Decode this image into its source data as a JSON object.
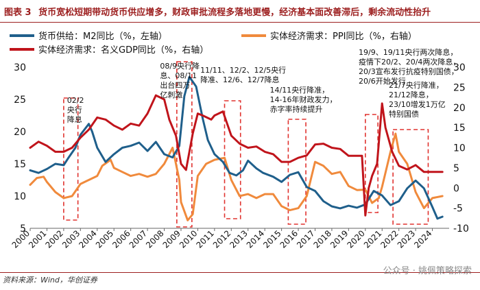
{
  "header": {
    "label": "图表 3",
    "title": "货币宽松短期带动货币供应增多，财政审批流程多落地更慢，经济基本面改善滞后，剩余流动性抬升"
  },
  "source": "资料来源：Wind，华创证券",
  "watermark": "公众号 · 姚佩策略探索",
  "colors": {
    "m2": "#1f5f8b",
    "ppi": "#f08a3c",
    "gdp": "#c0141b",
    "box": "#e0322e",
    "accent": "#9c1e1e"
  },
  "chart_data": {
    "type": "line",
    "legend": [
      "货币供给：M2同比（%，左轴）",
      "实体经济需求：PPI同比（%，右轴）",
      "实体经济需求：名义GDP同比（%，右轴）"
    ],
    "x_ticks": [
      "2000",
      "2001",
      "2002",
      "2003",
      "2004",
      "2005",
      "2006",
      "2007",
      "2008",
      "2009",
      "2010",
      "2011",
      "2012",
      "2013",
      "2014",
      "2015",
      "2016",
      "2017",
      "2018",
      "2019",
      "2020",
      "2021",
      "2022",
      "2023",
      "2024"
    ],
    "left_axis": {
      "min": 5,
      "max": 30,
      "ticks": [
        5,
        10,
        15,
        20,
        25,
        30
      ]
    },
    "right_axis": {
      "min": -10,
      "max": 30,
      "ticks": [
        -10,
        -5,
        0,
        5,
        10,
        15,
        20,
        25,
        30
      ]
    },
    "series": [
      {
        "name": "货币供给：M2同比（%，左轴）",
        "axis": "left",
        "x": [
          2000,
          2000.5,
          2001,
          2001.5,
          2002,
          2002.3,
          2002.7,
          2003,
          2003.5,
          2003.7,
          2004,
          2004.5,
          2005,
          2005.5,
          2006,
          2006.5,
          2007,
          2007.5,
          2008,
          2008.5,
          2008.9,
          2009.2,
          2009.5,
          2009.9,
          2010.3,
          2010.6,
          2011,
          2011.5,
          2011.9,
          2012.3,
          2012.7,
          2013,
          2013.5,
          2013.9,
          2014.5,
          2015,
          2015.5,
          2016,
          2016.5,
          2017,
          2017.5,
          2018,
          2018.5,
          2019,
          2019.5,
          2020,
          2020.5,
          2021,
          2021.5,
          2022,
          2022.5,
          2023,
          2023.5,
          2024,
          2024.3,
          2024.6
        ],
        "y": [
          14,
          13.6,
          14.2,
          15,
          14.8,
          16,
          17.5,
          19.5,
          21.2,
          20,
          17.5,
          15.3,
          16.5,
          17.5,
          17.8,
          18.3,
          17,
          18.4,
          16.5,
          16,
          17.8,
          25.5,
          28.5,
          27,
          22,
          18.7,
          16.5,
          15.3,
          13.6,
          13.2,
          14,
          15.5,
          14.3,
          13.6,
          13,
          12.2,
          13.3,
          13.7,
          11.4,
          10.8,
          9.2,
          8.4,
          8.1,
          8.5,
          8.2,
          8.7,
          10.8,
          10.1,
          8.6,
          9.2,
          11.2,
          12.4,
          11.2,
          8.3,
          6.5,
          6.8
        ]
      },
      {
        "name": "实体经济需求：PPI同比（%，右轴）",
        "axis": "right",
        "x": [
          2000,
          2000.4,
          2000.8,
          2001,
          2001.5,
          2002,
          2002.5,
          2003,
          2003.5,
          2004,
          2004.3,
          2004.8,
          2005,
          2005.5,
          2006,
          2006.5,
          2007,
          2007.5,
          2008,
          2008.5,
          2008.9,
          2009,
          2009.4,
          2009.7,
          2010,
          2010.5,
          2011,
          2011.6,
          2012,
          2012.5,
          2013,
          2013.5,
          2014,
          2014.5,
          2015,
          2015.5,
          2016,
          2016.5,
          2017,
          2017.5,
          2018,
          2018.5,
          2019,
          2019.5,
          2020,
          2020.4,
          2020.8,
          2021,
          2021.5,
          2021.8,
          2022,
          2022.5,
          2023,
          2023.5,
          2024,
          2024.6
        ],
        "y": [
          0.8,
          2.5,
          2.8,
          1.5,
          -1,
          -2.5,
          -2,
          1,
          2,
          3,
          5.5,
          7,
          5,
          4,
          3,
          3.5,
          2.8,
          3.5,
          6,
          10,
          2,
          -3.5,
          -8,
          -6.5,
          3,
          6,
          7,
          7.5,
          2,
          -2,
          -1.5,
          -2.5,
          -1.5,
          -1.5,
          -4.5,
          -5.5,
          -5,
          -2,
          6.5,
          5.5,
          3.5,
          4,
          0.5,
          -0.5,
          -0.4,
          -3.7,
          -2.5,
          0.3,
          9,
          13.5,
          9,
          6,
          -1,
          -5,
          -2.5,
          -2
        ]
      },
      {
        "name": "实体经济需求：名义GDP同比（%，右轴）",
        "axis": "right",
        "x": [
          2000,
          2000.5,
          2001,
          2001.5,
          2002,
          2002.5,
          2003,
          2003.5,
          2004,
          2004.5,
          2005,
          2005.5,
          2006,
          2006.5,
          2007,
          2007.5,
          2008,
          2008.3,
          2008.7,
          2009,
          2009.3,
          2009.7,
          2010,
          2010.3,
          2010.8,
          2011,
          2011.5,
          2012,
          2012.5,
          2013,
          2013.5,
          2014,
          2014.5,
          2015,
          2015.5,
          2016,
          2016.5,
          2017,
          2017.5,
          2018,
          2018.5,
          2019,
          2019.5,
          2019.8,
          2020,
          2020.2,
          2020.4,
          2020.7,
          2021,
          2021.2,
          2021.6,
          2022,
          2022.5,
          2023,
          2023.5,
          2024,
          2024.6
        ],
        "y": [
          10,
          11.5,
          10.5,
          9,
          9,
          10,
          12.5,
          14.5,
          17.5,
          17,
          15.5,
          14.5,
          16,
          15.5,
          18.5,
          23,
          22,
          17,
          13,
          6,
          4.5,
          13.5,
          18.5,
          18,
          17,
          18,
          19,
          13,
          11,
          10,
          10.3,
          9,
          8.4,
          6.5,
          6.5,
          7.5,
          8.1,
          10.8,
          11,
          10,
          9.7,
          8,
          8,
          8,
          -6.8,
          0,
          3,
          6,
          21,
          15,
          9,
          5.5,
          4.6,
          5.7,
          4,
          4,
          4
        ]
      }
    ]
  }
}
